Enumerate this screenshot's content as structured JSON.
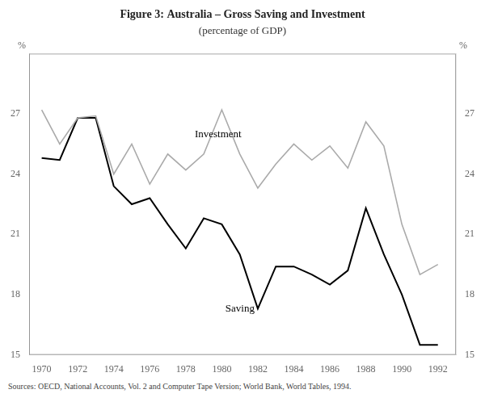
{
  "chart_data": {
    "type": "line",
    "title": "Figure 3: Australia – Gross Saving and Investment",
    "subtitle": "(percentage of GDP)",
    "x": [
      1970,
      1971,
      1972,
      1973,
      1974,
      1975,
      1976,
      1977,
      1978,
      1979,
      1980,
      1981,
      1982,
      1983,
      1984,
      1985,
      1986,
      1987,
      1988,
      1989,
      1990,
      1991,
      1992
    ],
    "series": [
      {
        "name": "Investment",
        "color": "#aaaaaa",
        "values": [
          27.2,
          25.5,
          26.8,
          26.9,
          24.0,
          25.5,
          23.5,
          25.0,
          24.2,
          25.0,
          27.2,
          25.0,
          23.3,
          24.5,
          25.5,
          24.7,
          25.4,
          24.3,
          26.6,
          25.4,
          21.5,
          19.0,
          19.5
        ]
      },
      {
        "name": "Saving",
        "color": "#000000",
        "values": [
          24.8,
          24.7,
          26.8,
          26.8,
          23.4,
          22.5,
          22.8,
          21.5,
          20.3,
          21.8,
          21.5,
          20.0,
          17.3,
          19.4,
          19.4,
          19.0,
          18.5,
          19.2,
          22.3,
          20.0,
          18.0,
          15.5,
          15.5
        ]
      }
    ],
    "xlim": [
      1969.3,
      1993.0
    ],
    "xticks": [
      1970,
      1972,
      1974,
      1976,
      1978,
      1980,
      1982,
      1984,
      1986,
      1988,
      1990,
      1992
    ],
    "ylim": [
      15,
      30
    ],
    "yticks": [
      15,
      18,
      21,
      24,
      27
    ],
    "y2lim": [
      15,
      30
    ],
    "y2ticks": [
      15,
      18,
      21,
      24,
      27
    ],
    "ylabel": "%",
    "y2label": "%",
    "annotations": [
      {
        "text": "Investment",
        "x": 1978.5,
        "y": 25.7
      },
      {
        "text": "Saving",
        "x": 1980.2,
        "y": 17.55
      }
    ],
    "source": "Sources: OECD, National Accounts, Vol. 2 and Computer Tape Version; World Bank, World Tables, 1994.",
    "grid": false
  }
}
